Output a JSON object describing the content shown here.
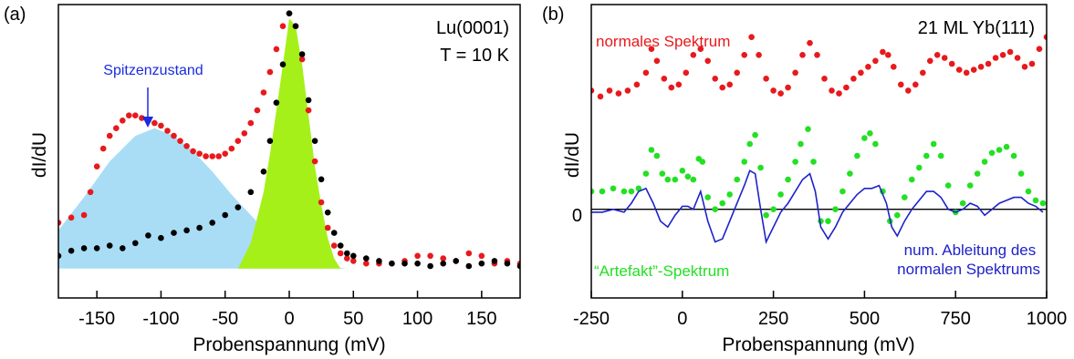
{
  "chart_data": [
    {
      "panel_label": "(a)",
      "type": "scatter",
      "xlabel": "Probenspannung (mV)",
      "ylabel": "dI/dU",
      "xlim": [
        -180,
        180
      ],
      "ylim": [
        0,
        1
      ],
      "xticks": [
        -150,
        -100,
        -50,
        0,
        50,
        100,
        150
      ],
      "xtick_labels": [
        "-150",
        "-100",
        "-50",
        "0",
        "50",
        "100",
        "150"
      ],
      "annotations": [
        "Lu(0001)",
        "T = 10 K",
        "Spitzenzustand"
      ],
      "series": [
        {
          "color": "#e8191c",
          "x": [
            -180,
            -170,
            -160,
            -155,
            -150,
            -145,
            -140,
            -135,
            -130,
            -125,
            -120,
            -115,
            -110,
            -105,
            -100,
            -95,
            -90,
            -85,
            -80,
            -75,
            -70,
            -65,
            -60,
            -55,
            -50,
            -45,
            -40,
            -35,
            -30,
            -25,
            -20,
            -15,
            -10,
            -5,
            0,
            5,
            10,
            15,
            20,
            25,
            30,
            35,
            40,
            45,
            50,
            60,
            70,
            80,
            90,
            100,
            110,
            120,
            130,
            140,
            150,
            160,
            170,
            180
          ],
          "y": [
            0.18,
            0.2,
            0.21,
            0.3,
            0.4,
            0.47,
            0.52,
            0.55,
            0.58,
            0.6,
            0.6,
            0.59,
            0.58,
            0.57,
            0.56,
            0.54,
            0.52,
            0.5,
            0.48,
            0.46,
            0.45,
            0.44,
            0.44,
            0.44,
            0.45,
            0.47,
            0.5,
            0.53,
            0.57,
            0.62,
            0.69,
            0.77,
            0.86,
            0.95,
            1.0,
            0.95,
            0.82,
            0.62,
            0.42,
            0.26,
            0.16,
            0.09,
            0.06,
            0.04,
            0.03,
            0.02,
            0.02,
            0.02,
            0.03,
            0.05,
            0.05,
            0.04,
            0.03,
            0.06,
            0.05,
            0.02,
            0.03,
            0.02
          ]
        },
        {
          "color": "#000000",
          "x": [
            -180,
            -170,
            -160,
            -150,
            -140,
            -130,
            -120,
            -110,
            -100,
            -90,
            -80,
            -70,
            -60,
            -50,
            -40,
            -30,
            -20,
            -15,
            -10,
            -5,
            0,
            5,
            10,
            15,
            20,
            25,
            30,
            35,
            40,
            45,
            50,
            60,
            70,
            80,
            90,
            100,
            110,
            120,
            130,
            140,
            150,
            160,
            170,
            180
          ],
          "y": [
            0.05,
            0.07,
            0.08,
            0.08,
            0.09,
            0.08,
            0.1,
            0.13,
            0.12,
            0.14,
            0.15,
            0.16,
            0.18,
            0.21,
            0.24,
            0.3,
            0.38,
            0.5,
            0.65,
            0.8,
            1.0,
            0.95,
            0.84,
            0.66,
            0.5,
            0.35,
            0.22,
            0.14,
            0.09,
            0.06,
            0.05,
            0.04,
            0.03,
            0.02,
            0.02,
            0.02,
            0.01,
            0.02,
            0.03,
            0.01,
            0.02,
            0.03,
            0.02,
            0.01
          ]
        },
        {
          "fill": "#a8ddf5",
          "x": [
            -180,
            -160,
            -140,
            -120,
            -105,
            -90,
            -75,
            -60,
            -45,
            -30,
            -15,
            0,
            15,
            30,
            45
          ],
          "y": [
            0.15,
            0.28,
            0.42,
            0.52,
            0.55,
            0.52,
            0.46,
            0.38,
            0.29,
            0.21,
            0.13,
            0.07,
            0.03,
            0.01,
            0.0
          ]
        },
        {
          "fill": "#a6f01a",
          "x": [
            -40,
            -30,
            -20,
            -15,
            -10,
            -5,
            0,
            5,
            10,
            15,
            20,
            25,
            30,
            35,
            40
          ],
          "y": [
            0.0,
            0.1,
            0.3,
            0.45,
            0.62,
            0.8,
            0.98,
            0.95,
            0.8,
            0.6,
            0.4,
            0.25,
            0.12,
            0.04,
            0.0
          ]
        }
      ]
    },
    {
      "panel_label": "(b)",
      "type": "scatter",
      "xlabel": "Probenspannung (mV)",
      "ylabel": "dI/dU",
      "xlim": [
        -250,
        1000
      ],
      "ylim": [
        -1,
        3.3
      ],
      "xticks": [
        -250,
        0,
        250,
        500,
        750,
        1000
      ],
      "xtick_labels": [
        "-250",
        "0",
        "250",
        "500",
        "750",
        "1000"
      ],
      "yticks": [
        0
      ],
      "ytick_labels": [
        "0"
      ],
      "annotations": [
        "21 ML Yb(111)"
      ],
      "series": [
        {
          "name": "normales Spektrum",
          "color": "#e8191c",
          "x": [
            -250,
            -225,
            -200,
            -175,
            -150,
            -125,
            -100,
            -85,
            -70,
            -50,
            -30,
            -10,
            10,
            30,
            50,
            70,
            90,
            110,
            130,
            150,
            170,
            190,
            210,
            230,
            250,
            270,
            290,
            310,
            330,
            350,
            370,
            390,
            410,
            430,
            450,
            470,
            490,
            510,
            530,
            550,
            565,
            580,
            600,
            620,
            640,
            660,
            680,
            700,
            720,
            740,
            760,
            780,
            800,
            820,
            840,
            860,
            880,
            900,
            920,
            940,
            960,
            980,
            1000
          ],
          "y": [
            2.0,
            1.9,
            2.0,
            1.95,
            2.0,
            2.1,
            2.3,
            2.7,
            2.5,
            2.2,
            2.05,
            2.1,
            2.3,
            2.6,
            2.7,
            2.5,
            2.2,
            2.05,
            2.1,
            2.3,
            2.6,
            2.9,
            2.6,
            2.2,
            2.0,
            1.95,
            2.05,
            2.3,
            2.6,
            2.8,
            2.6,
            2.2,
            2.0,
            1.95,
            2.05,
            2.2,
            2.3,
            2.4,
            2.5,
            2.65,
            2.6,
            2.4,
            2.1,
            2.0,
            2.1,
            2.3,
            2.5,
            2.6,
            2.55,
            2.45,
            2.35,
            2.3,
            2.35,
            2.4,
            2.45,
            2.55,
            2.6,
            2.65,
            2.55,
            2.4,
            2.45,
            2.7,
            2.9
          ]
        },
        {
          "name": "“Artefakt”-Spektrum",
          "color": "#23e023",
          "x": [
            -250,
            -220,
            -190,
            -160,
            -140,
            -120,
            -100,
            -85,
            -70,
            -55,
            -40,
            -20,
            0,
            15,
            30,
            45,
            55,
            70,
            90,
            110,
            130,
            150,
            170,
            185,
            200,
            215,
            230,
            250,
            270,
            290,
            310,
            325,
            345,
            360,
            380,
            400,
            420,
            440,
            460,
            480,
            500,
            515,
            530,
            550,
            570,
            590,
            610,
            630,
            650,
            670,
            690,
            710,
            730,
            750,
            770,
            790,
            810,
            830,
            850,
            870,
            890,
            910,
            930,
            950,
            970,
            990
          ],
          "y": [
            0.3,
            0.3,
            0.35,
            0.3,
            0.3,
            0.35,
            0.6,
            1.0,
            0.9,
            0.6,
            0.5,
            0.5,
            0.65,
            0.55,
            0.5,
            0.85,
            0.8,
            0.2,
            0.0,
            0.1,
            0.25,
            0.5,
            0.8,
            1.1,
            1.25,
            0.7,
            -0.1,
            0.0,
            0.25,
            0.5,
            0.8,
            1.1,
            1.35,
            0.8,
            -0.2,
            -0.2,
            0.0,
            0.3,
            0.6,
            0.9,
            1.2,
            1.28,
            1.1,
            0.3,
            -0.2,
            -0.1,
            0.2,
            0.5,
            0.7,
            0.9,
            1.1,
            0.9,
            0.4,
            -0.05,
            0.1,
            0.4,
            0.6,
            0.8,
            0.95,
            1.0,
            1.05,
            0.9,
            0.6,
            0.3,
            0.15,
            0.1
          ]
        },
        {
          "name": "num. Ableitung des normalen Spektrums",
          "color": "#1e22c8",
          "x": [
            -250,
            -220,
            -190,
            -160,
            -140,
            -120,
            -100,
            -80,
            -60,
            -40,
            -20,
            0,
            15,
            30,
            50,
            70,
            90,
            110,
            130,
            150,
            170,
            185,
            200,
            215,
            230,
            250,
            270,
            290,
            310,
            330,
            350,
            365,
            380,
            400,
            420,
            440,
            460,
            480,
            500,
            520,
            540,
            560,
            575,
            590,
            610,
            630,
            650,
            670,
            690,
            710,
            730,
            750,
            770,
            790,
            810,
            830,
            850,
            870,
            890,
            910,
            930,
            950,
            970,
            990
          ],
          "y": [
            -0.05,
            -0.05,
            0.0,
            -0.05,
            0.1,
            0.3,
            0.35,
            0.1,
            -0.2,
            -0.3,
            -0.1,
            0.05,
            0.05,
            0.0,
            0.3,
            -0.2,
            -0.55,
            -0.5,
            -0.2,
            0.1,
            0.4,
            0.65,
            0.6,
            0.0,
            -0.55,
            -0.3,
            -0.05,
            0.1,
            0.3,
            0.5,
            0.6,
            0.3,
            -0.3,
            -0.5,
            -0.3,
            -0.05,
            0.1,
            0.25,
            0.35,
            0.35,
            0.4,
            0.1,
            -0.3,
            -0.45,
            -0.2,
            0.0,
            0.15,
            0.3,
            0.3,
            0.2,
            0.0,
            -0.05,
            0.0,
            0.1,
            0.05,
            -0.1,
            0.0,
            0.1,
            0.15,
            0.2,
            0.2,
            0.1,
            0.05,
            -0.05
          ]
        }
      ]
    }
  ]
}
